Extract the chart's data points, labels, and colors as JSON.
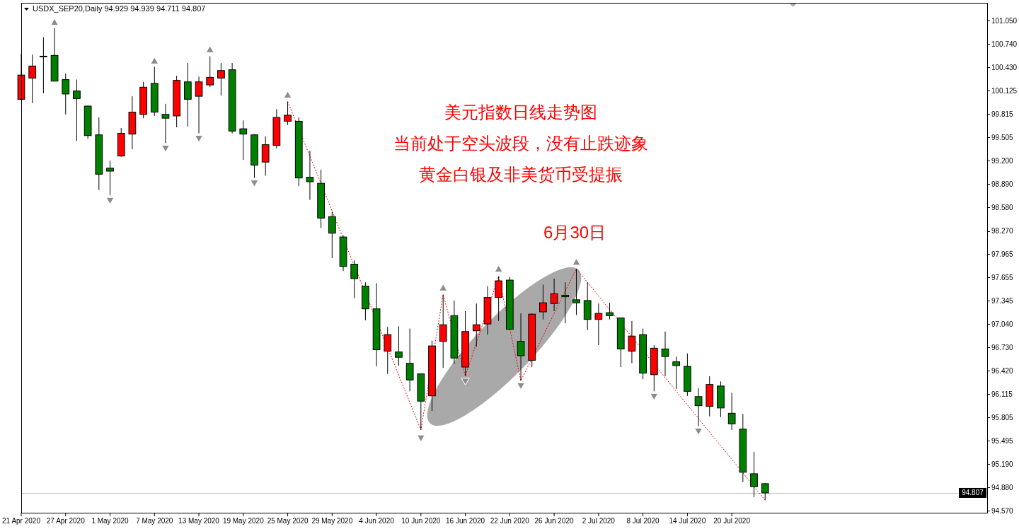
{
  "chart_data": {
    "type": "candlestick",
    "title": "USDX_SEP20,Daily 94.929 94.939 94.711 94.807",
    "categories": [
      "21 Apr 2020",
      null,
      null,
      null,
      "27 Apr 2020",
      null,
      null,
      null,
      "1 May 2020",
      null,
      null,
      null,
      "7 May 2020",
      null,
      null,
      null,
      "13 May 2020",
      null,
      null,
      null,
      "19 May 2020",
      null,
      null,
      null,
      "25 May 2020",
      null,
      null,
      null,
      "29 May 2020",
      null,
      null,
      null,
      "4 Jun 2020",
      null,
      null,
      null,
      "10 Jun 2020",
      null,
      null,
      null,
      "16 Jun 2020",
      null,
      null,
      null,
      "22 Jun 2020",
      null,
      null,
      null,
      "26 Jun 2020",
      null,
      null,
      null,
      "2 Jul 2020",
      null,
      null,
      null,
      "8 Jul 2020",
      null,
      null,
      null,
      "14 Jul 2020",
      null,
      null,
      null,
      "20 Jul 2020",
      null,
      null,
      null,
      null,
      null,
      null,
      null,
      null,
      null,
      null,
      null,
      null,
      null,
      null,
      null,
      null,
      null,
      null,
      null,
      null,
      null,
      null,
      null
    ],
    "ohlc": [
      [
        100.01,
        100.61,
        100.01,
        100.33
      ],
      [
        100.29,
        100.6,
        99.96,
        100.45
      ],
      [
        100.58,
        100.83,
        100.09,
        100.58
      ],
      [
        100.59,
        100.95,
        100.25,
        100.25
      ],
      [
        100.27,
        100.35,
        99.81,
        100.08
      ],
      [
        100.12,
        100.27,
        99.46,
        100.02
      ],
      [
        99.92,
        99.93,
        99.49,
        99.53
      ],
      [
        99.54,
        99.77,
        98.81,
        99.02
      ],
      [
        99.1,
        99.2,
        98.74,
        99.06
      ],
      [
        99.26,
        99.63,
        99.25,
        99.56
      ],
      [
        99.55,
        100.05,
        99.35,
        99.84
      ],
      [
        99.81,
        100.24,
        99.76,
        100.17
      ],
      [
        100.22,
        100.44,
        99.79,
        99.84
      ],
      [
        99.81,
        99.95,
        99.43,
        99.76
      ],
      [
        99.79,
        100.32,
        99.64,
        100.26
      ],
      [
        100.24,
        100.49,
        99.65,
        100.01
      ],
      [
        100.05,
        100.31,
        99.56,
        100.24
      ],
      [
        100.2,
        100.58,
        100.17,
        100.3
      ],
      [
        100.29,
        100.49,
        100.06,
        100.39
      ],
      [
        100.4,
        100.49,
        99.56,
        99.59
      ],
      [
        99.62,
        99.73,
        99.21,
        99.55
      ],
      [
        99.54,
        99.55,
        98.97,
        99.14
      ],
      [
        99.18,
        99.52,
        99.0,
        99.41
      ],
      [
        99.4,
        99.88,
        99.36,
        99.77
      ],
      [
        99.72,
        99.98,
        99.67,
        99.8
      ],
      [
        99.72,
        99.77,
        98.86,
        98.97
      ],
      [
        98.98,
        99.33,
        98.68,
        98.92
      ],
      [
        98.9,
        99.08,
        98.31,
        98.44
      ],
      [
        98.46,
        98.52,
        97.91,
        98.24
      ],
      [
        98.19,
        98.21,
        97.74,
        97.8
      ],
      [
        97.83,
        97.88,
        97.38,
        97.64
      ],
      [
        97.54,
        97.59,
        97.09,
        97.24
      ],
      [
        97.24,
        97.58,
        96.48,
        96.7
      ],
      [
        96.68,
        97.0,
        96.38,
        96.9
      ],
      [
        96.67,
        97.01,
        96.49,
        96.6
      ],
      [
        96.52,
        96.98,
        96.15,
        96.3
      ],
      [
        96.38,
        96.38,
        95.64,
        96.02
      ],
      [
        96.09,
        96.82,
        95.89,
        96.75
      ],
      [
        96.81,
        97.43,
        96.46,
        97.03
      ],
      [
        97.15,
        97.35,
        96.51,
        96.59
      ],
      [
        96.47,
        97.21,
        96.35,
        96.94
      ],
      [
        96.95,
        97.31,
        96.74,
        97.03
      ],
      [
        97.04,
        97.54,
        96.9,
        97.39
      ],
      [
        97.39,
        97.67,
        97.08,
        97.61
      ],
      [
        97.62,
        97.66,
        96.97,
        96.97
      ],
      [
        96.81,
        97.18,
        96.29,
        96.62
      ],
      [
        96.56,
        97.18,
        96.47,
        97.17
      ],
      [
        97.2,
        97.56,
        97.1,
        97.32
      ],
      [
        97.31,
        97.64,
        97.21,
        97.44
      ],
      [
        97.42,
        97.59,
        97.05,
        97.4
      ],
      [
        97.36,
        97.77,
        97.16,
        97.32
      ],
      [
        97.35,
        97.59,
        96.96,
        97.1
      ],
      [
        97.1,
        97.31,
        96.76,
        97.18
      ],
      [
        97.19,
        97.32,
        97.1,
        97.15
      ],
      [
        97.12,
        97.12,
        96.47,
        96.71
      ],
      [
        96.68,
        97.08,
        96.52,
        96.88
      ],
      [
        96.9,
        96.98,
        96.31,
        96.39
      ],
      [
        96.37,
        96.76,
        96.15,
        96.72
      ],
      [
        96.71,
        96.94,
        96.35,
        96.61
      ],
      [
        96.54,
        96.61,
        96.18,
        96.49
      ],
      [
        96.48,
        96.65,
        96.09,
        96.15
      ],
      [
        96.08,
        96.19,
        95.69,
        95.96
      ],
      [
        95.95,
        96.35,
        95.82,
        96.24
      ],
      [
        96.22,
        96.28,
        95.81,
        95.93
      ],
      [
        95.86,
        96.13,
        95.64,
        95.72
      ],
      [
        95.65,
        95.85,
        94.95,
        95.08
      ],
      [
        95.06,
        95.35,
        94.75,
        94.89
      ],
      [
        94.929,
        94.939,
        94.711,
        94.807
      ],
      null,
      null,
      null,
      null,
      null,
      null,
      null,
      null,
      null,
      null,
      null,
      null,
      null,
      null,
      null,
      null,
      null,
      null,
      null,
      null
    ],
    "colors": [
      "#ff0000",
      "#ff0000",
      "#008000",
      "#008000",
      "#008000",
      "#008000",
      "#008000",
      "#008000",
      "#008000",
      "#ff0000",
      "#ff0000",
      "#ff0000",
      "#008000",
      "#008000",
      "#ff0000",
      "#008000",
      "#ff0000",
      "#ff0000",
      "#ff0000",
      "#008000",
      "#008000",
      "#008000",
      "#ff0000",
      "#ff0000",
      "#ff0000",
      "#008000",
      "#008000",
      "#008000",
      "#008000",
      "#008000",
      "#008000",
      "#008000",
      "#008000",
      "#ff0000",
      "#008000",
      "#008000",
      "#008000",
      "#ff0000",
      "#ff0000",
      "#008000",
      "#ff0000",
      "#ff0000",
      "#ff0000",
      "#ff0000",
      "#008000",
      "#008000",
      "#ff0000",
      "#ff0000",
      "#ff0000",
      "#008000",
      "#008000",
      "#008000",
      "#ff0000",
      "#008000",
      "#008000",
      "#ff0000",
      "#008000",
      "#ff0000",
      "#008000",
      "#008000",
      "#008000",
      "#008000",
      "#ff0000",
      "#008000",
      "#008000",
      "#008000",
      "#008000",
      "#008000",
      null,
      null,
      null,
      null,
      null,
      null,
      null,
      null,
      null,
      null,
      null,
      null,
      null,
      null,
      null,
      null,
      null,
      null,
      null,
      null
    ],
    "series": [
      {
        "type": "line",
        "color": "#ff0000",
        "line_style": "dotted",
        "values": [
          null,
          null,
          null,
          null,
          null,
          null,
          null,
          null,
          null,
          null,
          null,
          null,
          null,
          null,
          null,
          null,
          null,
          null,
          null,
          null,
          null,
          null,
          null,
          null,
          99.98,
          null,
          null,
          null,
          null,
          null,
          null,
          null,
          null,
          null,
          null,
          null,
          95.64,
          null,
          97.43,
          null,
          96.35,
          null,
          null,
          97.67,
          null,
          96.29,
          null,
          null,
          null,
          null,
          97.77,
          null,
          null,
          null,
          null,
          null,
          null,
          null,
          null,
          null,
          null,
          null,
          null,
          null,
          null,
          null,
          null,
          94.71,
          null,
          null,
          null,
          null,
          null,
          null,
          null,
          null,
          null,
          null,
          null,
          null,
          null,
          null,
          null,
          null,
          null,
          null,
          null,
          null
        ]
      },
      {
        "type": "scatter",
        "color": "#8c8c8c",
        "marker": "triangle",
        "values": [
          null,
          null,
          null,
          101.03,
          null,
          null,
          null,
          null,
          null,
          null,
          null,
          null,
          100.52,
          null,
          null,
          null,
          null,
          100.67,
          null,
          null,
          null,
          null,
          null,
          null,
          100.07,
          null,
          null,
          null,
          null,
          null,
          null,
          null,
          null,
          null,
          null,
          null,
          null,
          null,
          97.52,
          null,
          null,
          null,
          null,
          97.77,
          null,
          null,
          null,
          null,
          null,
          null,
          97.86,
          null,
          null,
          null,
          null,
          null,
          null,
          null,
          null,
          null,
          null,
          null,
          null,
          null,
          null,
          null,
          null,
          null,
          null,
          null,
          null,
          null,
          null,
          null,
          null,
          null,
          null,
          null,
          null,
          null,
          null,
          null,
          null,
          null,
          null,
          null,
          null,
          null
        ]
      },
      {
        "type": "scatter",
        "color": "#8c8c8c",
        "marker": "triangle",
        "values": [
          null,
          null,
          null,
          null,
          null,
          null,
          null,
          null,
          98.67,
          null,
          null,
          null,
          null,
          99.36,
          null,
          null,
          99.49,
          null,
          null,
          null,
          null,
          98.9,
          null,
          null,
          null,
          null,
          null,
          null,
          null,
          null,
          null,
          null,
          null,
          null,
          null,
          null,
          95.53,
          null,
          null,
          null,
          96.28,
          null,
          null,
          null,
          null,
          96.22,
          null,
          null,
          null,
          null,
          null,
          null,
          null,
          null,
          null,
          null,
          null,
          96.08,
          null,
          null,
          null,
          95.62,
          null,
          null,
          null,
          null,
          null,
          null,
          null,
          null,
          null,
          null,
          null,
          null,
          null,
          null,
          null,
          null,
          null,
          null,
          null,
          null,
          null,
          null,
          null,
          null,
          null,
          null
        ]
      }
    ],
    "ylim": [
      94.545,
      101.285
    ],
    "yticks": [
      {
        "value": 101.05,
        "label": "101.050"
      },
      {
        "value": 100.74,
        "label": "100.740"
      },
      {
        "value": 100.43,
        "label": "100.430"
      },
      {
        "value": 100.125,
        "label": "100.125"
      },
      {
        "value": 99.815,
        "label": "99.815"
      },
      {
        "value": 99.505,
        "label": "99.505"
      },
      {
        "value": 99.2,
        "label": "99.200"
      },
      {
        "value": 98.89,
        "label": "98.890"
      },
      {
        "value": 98.58,
        "label": "98.580"
      },
      {
        "value": 98.27,
        "label": "98.270"
      },
      {
        "value": 97.965,
        "label": "97.965"
      },
      {
        "value": 97.655,
        "label": "97.655"
      },
      {
        "value": 97.345,
        "label": "97.345"
      },
      {
        "value": 97.04,
        "label": "97.040"
      },
      {
        "value": 96.73,
        "label": "96.730"
      },
      {
        "value": 96.42,
        "label": "96.420"
      },
      {
        "value": 96.115,
        "label": "96.115"
      },
      {
        "value": 95.805,
        "label": "95.805"
      },
      {
        "value": 95.495,
        "label": "95.495"
      },
      {
        "value": 95.19,
        "label": "95.190"
      },
      {
        "value": 94.88,
        "label": "94.880"
      },
      {
        "value": 94.57,
        "label": "94.570"
      }
    ],
    "ref_lines": [
      {
        "axis": "y",
        "value": 94.807,
        "label": "94.807",
        "color": "#c0c0c0"
      }
    ],
    "annotations": [
      "美元指数日线走势图",
      "当前处于空头波段，没有止跌迹象",
      "黄金白银及非美货币受提振",
      "6月30日"
    ]
  }
}
